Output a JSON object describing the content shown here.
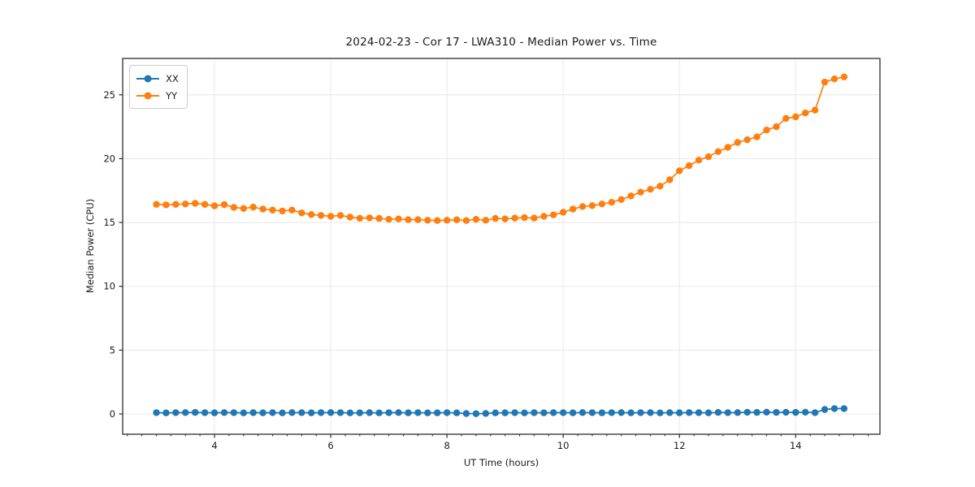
{
  "figure": {
    "title": "2024-02-23 - Cor 17 - LWA310 - Median Power vs. Time",
    "background": "#ffffff"
  },
  "chart_data": {
    "type": "line",
    "title": "2024-02-23 - Cor 17 - LWA310 - Median Power vs. Time",
    "xlabel": "UT Time (hours)",
    "ylabel": "Median Power (CPU)",
    "xlim": [
      2.42,
      15.45
    ],
    "ylim": [
      -1.59,
      27.85
    ],
    "x_ticks": [
      4,
      6,
      8,
      10,
      12,
      14
    ],
    "x_minor_tick_step": 0.25,
    "y_ticks": [
      0,
      5,
      10,
      15,
      20,
      25
    ],
    "grid": true,
    "grid_color": "#e8e8e8",
    "spine_color": "#2b2b2b",
    "text_color": "#1a1a1a",
    "legend_position": "upper-left",
    "marker": "circle",
    "marker_radius": 4.2,
    "line_width": 1.7,
    "x": [
      3.0,
      3.167,
      3.333,
      3.5,
      3.667,
      3.833,
      4.0,
      4.167,
      4.333,
      4.5,
      4.667,
      4.833,
      5.0,
      5.167,
      5.333,
      5.5,
      5.667,
      5.833,
      6.0,
      6.167,
      6.333,
      6.5,
      6.667,
      6.833,
      7.0,
      7.167,
      7.333,
      7.5,
      7.667,
      7.833,
      8.0,
      8.167,
      8.333,
      8.5,
      8.667,
      8.833,
      9.0,
      9.167,
      9.333,
      9.5,
      9.667,
      9.833,
      10.0,
      10.167,
      10.333,
      10.5,
      10.667,
      10.833,
      11.0,
      11.167,
      11.333,
      11.5,
      11.667,
      11.833,
      12.0,
      12.167,
      12.333,
      12.5,
      12.667,
      12.833,
      13.0,
      13.167,
      13.333,
      13.5,
      13.667,
      13.833,
      14.0,
      14.167,
      14.333,
      14.5,
      14.667,
      14.833
    ],
    "series": [
      {
        "name": "XX",
        "color": "#1f77b4",
        "values": [
          0.1,
          0.08,
          0.1,
          0.11,
          0.12,
          0.1,
          0.09,
          0.11,
          0.1,
          0.08,
          0.1,
          0.09,
          0.1,
          0.08,
          0.11,
          0.1,
          0.09,
          0.1,
          0.11,
          0.1,
          0.08,
          0.09,
          0.1,
          0.08,
          0.1,
          0.11,
          0.09,
          0.1,
          0.08,
          0.09,
          0.1,
          0.08,
          0.03,
          0.02,
          0.04,
          0.08,
          0.09,
          0.1,
          0.08,
          0.1,
          0.09,
          0.1,
          0.1,
          0.09,
          0.11,
          0.1,
          0.09,
          0.1,
          0.11,
          0.09,
          0.1,
          0.1,
          0.08,
          0.1,
          0.09,
          0.11,
          0.1,
          0.09,
          0.12,
          0.1,
          0.11,
          0.13,
          0.12,
          0.14,
          0.12,
          0.13,
          0.12,
          0.14,
          0.1,
          0.35,
          0.42,
          0.42
        ]
      },
      {
        "name": "YY",
        "color": "#ff7f0e",
        "values": [
          16.42,
          16.38,
          16.42,
          16.45,
          16.5,
          16.42,
          16.3,
          16.4,
          16.18,
          16.1,
          16.2,
          16.05,
          15.97,
          15.9,
          15.97,
          15.75,
          15.62,
          15.55,
          15.48,
          15.55,
          15.42,
          15.33,
          15.36,
          15.32,
          15.25,
          15.28,
          15.22,
          15.22,
          15.18,
          15.15,
          15.18,
          15.21,
          15.15,
          15.25,
          15.18,
          15.32,
          15.28,
          15.34,
          15.38,
          15.34,
          15.48,
          15.6,
          15.8,
          16.05,
          16.25,
          16.32,
          16.45,
          16.58,
          16.8,
          17.08,
          17.38,
          17.6,
          17.85,
          18.35,
          19.05,
          19.45,
          19.88,
          20.15,
          20.55,
          20.89,
          21.27,
          21.48,
          21.7,
          22.24,
          22.5,
          23.15,
          23.27,
          23.58,
          23.8,
          26.0,
          26.25,
          26.4
        ]
      }
    ]
  }
}
